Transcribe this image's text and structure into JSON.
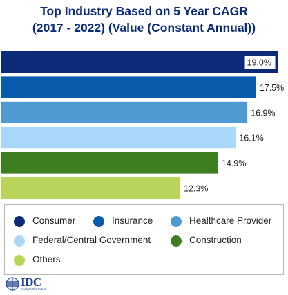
{
  "header": {
    "title_line1": "Top Industry Based on 5 Year CAGR",
    "title_line2": "(2017 - 2022) (Value (Constant Annual))"
  },
  "chart_data": {
    "type": "bar",
    "orientation": "horizontal",
    "title": "Top Industry Based on 5 Year CAGR (2017 - 2022) (Value (Constant Annual))",
    "categories": [
      "Consumer",
      "Insurance",
      "Healthcare Provider",
      "Federal/Central Government",
      "Construction",
      "Others"
    ],
    "values": [
      19.0,
      17.5,
      16.9,
      16.1,
      14.9,
      12.3
    ],
    "value_labels": [
      "19.0%",
      "17.5%",
      "16.9%",
      "16.1%",
      "14.9%",
      "12.3%"
    ],
    "colors": [
      "#0b2a78",
      "#0a5bab",
      "#4f9ad3",
      "#a8d7fa",
      "#3d7e1e",
      "#b8d45a"
    ],
    "xlim": [
      0,
      19.4
    ],
    "grid": false,
    "legend_position": "bottom"
  },
  "legend": {
    "items": [
      {
        "label": "Consumer",
        "color": "#0b2a78"
      },
      {
        "label": "Insurance",
        "color": "#0a5bab"
      },
      {
        "label": "Healthcare Provider",
        "color": "#4f9ad3"
      },
      {
        "label": "Federal/Central Government",
        "color": "#a8d7fa"
      },
      {
        "label": "Construction",
        "color": "#3d7e1e"
      },
      {
        "label": "Others",
        "color": "#b8d45a"
      }
    ]
  },
  "logo": {
    "name": "IDC",
    "tagline": "Analyze the Future"
  }
}
